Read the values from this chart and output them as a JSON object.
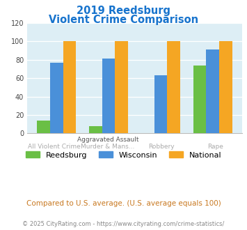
{
  "title_line1": "2019 Reedsburg",
  "title_line2": "Violent Crime Comparison",
  "title_color": "#1874CD",
  "reedsburg": [
    14,
    8,
    0,
    74
  ],
  "wisconsin": [
    77,
    81,
    63,
    91
  ],
  "national": [
    100,
    100,
    100,
    100
  ],
  "reedsburg_color": "#6abf45",
  "wisconsin_color": "#4a90d9",
  "national_color": "#f5a623",
  "ylim": [
    0,
    120
  ],
  "yticks": [
    0,
    20,
    40,
    60,
    80,
    100,
    120
  ],
  "bg_color": "#ddeef5",
  "fig_bg": "#ffffff",
  "footnote1": "Compared to U.S. average. (U.S. average equals 100)",
  "footnote2": "© 2025 CityRating.com - https://www.cityrating.com/crime-statistics/",
  "footnote1_color": "#c87820",
  "footnote2_color": "#888888",
  "legend_labels": [
    "Reedsburg",
    "Wisconsin",
    "National"
  ],
  "xlabel_top": [
    "",
    "Aggravated Assault",
    "",
    ""
  ],
  "xlabel_top_color": "#555555",
  "xlabel_bot": [
    "All Violent Crime",
    "Murder & Mans...",
    "Robbery",
    "Rape"
  ],
  "xlabel_bot_color": "#aaaaaa"
}
